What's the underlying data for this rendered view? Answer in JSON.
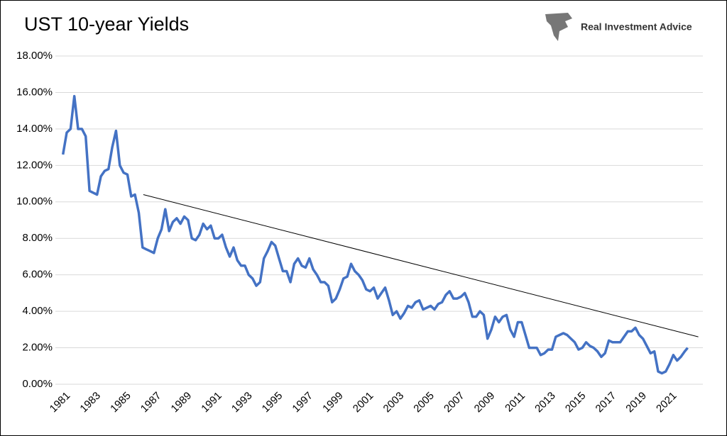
{
  "chart_data": {
    "type": "line",
    "title": "UST 10-year Yields",
    "source": "Real Investment Advice",
    "color": "#4472c4",
    "grid": true,
    "x": [
      1981,
      1981.25,
      1981.5,
      1981.75,
      1982,
      1982.25,
      1982.5,
      1982.75,
      1983,
      1983.25,
      1983.5,
      1983.75,
      1984,
      1984.25,
      1984.5,
      1984.75,
      1985,
      1985.25,
      1985.5,
      1985.75,
      1986,
      1986.25,
      1986.5,
      1986.75,
      1987,
      1987.25,
      1987.5,
      1987.75,
      1988,
      1988.25,
      1988.5,
      1988.75,
      1989,
      1989.25,
      1989.5,
      1989.75,
      1990,
      1990.25,
      1990.5,
      1990.75,
      1991,
      1991.25,
      1991.5,
      1991.75,
      1992,
      1992.25,
      1992.5,
      1992.75,
      1993,
      1993.25,
      1993.5,
      1993.75,
      1994,
      1994.25,
      1994.5,
      1994.75,
      1995,
      1995.25,
      1995.5,
      1995.75,
      1996,
      1996.25,
      1996.5,
      1996.75,
      1997,
      1997.25,
      1997.5,
      1997.75,
      1998,
      1998.25,
      1998.5,
      1998.75,
      1999,
      1999.25,
      1999.5,
      1999.75,
      2000,
      2000.25,
      2000.5,
      2000.75,
      2001,
      2001.25,
      2001.5,
      2001.75,
      2002,
      2002.25,
      2002.5,
      2002.75,
      2003,
      2003.25,
      2003.5,
      2003.75,
      2004,
      2004.25,
      2004.5,
      2004.75,
      2005,
      2005.25,
      2005.5,
      2005.75,
      2006,
      2006.25,
      2006.5,
      2006.75,
      2007,
      2007.25,
      2007.5,
      2007.75,
      2008,
      2008.25,
      2008.5,
      2008.75,
      2009,
      2009.25,
      2009.5,
      2009.75,
      2010,
      2010.25,
      2010.5,
      2010.75,
      2011,
      2011.25,
      2011.5,
      2011.75,
      2012,
      2012.25,
      2012.5,
      2012.75,
      2013,
      2013.25,
      2013.5,
      2013.75,
      2014,
      2014.25,
      2014.5,
      2014.75,
      2015,
      2015.25,
      2015.5,
      2015.75,
      2016,
      2016.25,
      2016.5,
      2016.75,
      2017,
      2017.25,
      2017.5,
      2017.75,
      2018,
      2018.25,
      2018.5,
      2018.75,
      2019,
      2019.25,
      2019.5,
      2019.75,
      2020,
      2020.25,
      2020.5,
      2020.75,
      2021,
      2021.25,
      2021.5,
      2021.75,
      2022,
      2022.2
    ],
    "values": [
      12.6,
      13.8,
      14.0,
      15.8,
      14.0,
      14.0,
      13.6,
      10.6,
      10.5,
      10.4,
      11.4,
      11.7,
      11.8,
      13.0,
      13.9,
      12.0,
      11.6,
      11.5,
      10.3,
      10.4,
      9.4,
      7.5,
      7.4,
      7.3,
      7.2,
      8.0,
      8.5,
      9.6,
      8.4,
      8.9,
      9.1,
      8.8,
      9.2,
      9.0,
      8.0,
      7.9,
      8.2,
      8.8,
      8.5,
      8.7,
      8.0,
      8.0,
      8.2,
      7.5,
      7.0,
      7.5,
      6.8,
      6.5,
      6.5,
      6.0,
      5.8,
      5.4,
      5.6,
      6.9,
      7.3,
      7.8,
      7.6,
      6.9,
      6.2,
      6.2,
      5.6,
      6.6,
      6.9,
      6.5,
      6.4,
      6.9,
      6.3,
      6.0,
      5.6,
      5.6,
      5.4,
      4.5,
      4.7,
      5.2,
      5.8,
      5.9,
      6.6,
      6.2,
      6.0,
      5.7,
      5.2,
      5.1,
      5.3,
      4.7,
      5.0,
      5.3,
      4.6,
      3.8,
      4.0,
      3.6,
      3.9,
      4.3,
      4.2,
      4.5,
      4.6,
      4.1,
      4.2,
      4.3,
      4.1,
      4.4,
      4.5,
      4.9,
      5.1,
      4.7,
      4.7,
      4.8,
      5.0,
      4.5,
      3.7,
      3.7,
      4.0,
      3.8,
      2.5,
      3.0,
      3.7,
      3.4,
      3.7,
      3.8,
      3.0,
      2.6,
      3.4,
      3.4,
      2.7,
      2.0,
      2.0,
      2.0,
      1.6,
      1.7,
      1.9,
      1.9,
      2.6,
      2.7,
      2.8,
      2.7,
      2.5,
      2.3,
      1.9,
      2.0,
      2.3,
      2.1,
      2.0,
      1.8,
      1.5,
      1.7,
      2.4,
      2.3,
      2.3,
      2.3,
      2.6,
      2.9,
      2.9,
      3.1,
      2.7,
      2.5,
      2.1,
      1.7,
      1.8,
      0.7,
      0.6,
      0.7,
      1.1,
      1.6,
      1.3,
      1.5,
      1.8,
      2.0
    ],
    "trendline": {
      "x": [
        1986.3,
        2022.9
      ],
      "values": [
        10.4,
        2.6
      ]
    },
    "xlim": [
      1980.5,
      2023.2
    ],
    "xticks": [
      1981,
      1983,
      1985,
      1987,
      1989,
      1991,
      1993,
      1995,
      1997,
      1999,
      2001,
      2003,
      2005,
      2007,
      2009,
      2011,
      2013,
      2015,
      2017,
      2019,
      2021
    ],
    "ylim": [
      0,
      18
    ],
    "yticks": [
      {
        "value": 0,
        "label": "0.00%"
      },
      {
        "value": 2,
        "label": "2.00%"
      },
      {
        "value": 4,
        "label": "4.00%"
      },
      {
        "value": 6,
        "label": "6.00%"
      },
      {
        "value": 8,
        "label": "8.00%"
      },
      {
        "value": 10,
        "label": "10.00%"
      },
      {
        "value": 12,
        "label": "12.00%"
      },
      {
        "value": 14,
        "label": "14.00%"
      },
      {
        "value": 16,
        "label": "16.00%"
      },
      {
        "value": 18,
        "label": "18.00%"
      }
    ]
  }
}
